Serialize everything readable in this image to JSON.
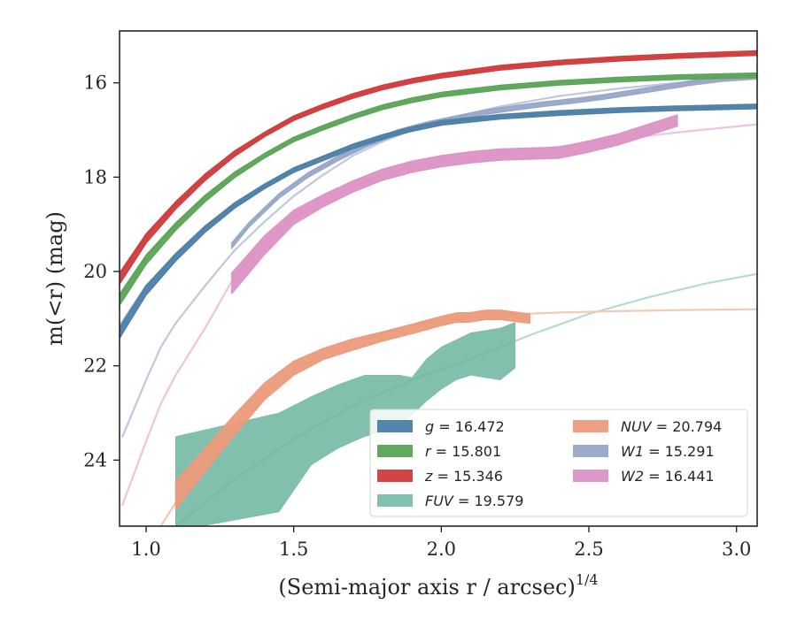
{
  "chart_data": {
    "type": "line",
    "xlabel": "(Semi-major axis r / arcsec)",
    "xlabel_exponent": "1/4",
    "ylabel": "m(<r) (mag)",
    "xlim": [
      0.91,
      3.07
    ],
    "ylim": [
      25.4,
      14.9
    ],
    "y_inverted": true,
    "grid": false,
    "legend_position": "lower-right",
    "x_ticks": [
      {
        "value": 1.0,
        "label": "1.0"
      },
      {
        "value": 1.5,
        "label": "1.5"
      },
      {
        "value": 2.0,
        "label": "2.0"
      },
      {
        "value": 2.5,
        "label": "2.5"
      },
      {
        "value": 3.0,
        "label": "3.0"
      }
    ],
    "y_ticks": [
      {
        "value": 16,
        "label": "16"
      },
      {
        "value": 18,
        "label": "18"
      },
      {
        "value": 20,
        "label": "20"
      },
      {
        "value": 22,
        "label": "22"
      },
      {
        "value": 24,
        "label": "24"
      }
    ],
    "series": [
      {
        "name": "g",
        "legend_value": "16.472",
        "color": "#4c7ea8",
        "kind": "band",
        "x": [
          0.91,
          1.0,
          1.1,
          1.2,
          1.3,
          1.4,
          1.5,
          1.6,
          1.7,
          1.8,
          1.9,
          2.0,
          2.2,
          2.4,
          2.6,
          2.8,
          3.07
        ],
        "y": [
          21.3,
          20.4,
          19.7,
          19.1,
          18.6,
          18.2,
          17.85,
          17.6,
          17.35,
          17.15,
          16.98,
          16.85,
          16.72,
          16.64,
          16.58,
          16.54,
          16.5
        ],
        "width": [
          0.12,
          0.1,
          0.08,
          0.07,
          0.06,
          0.05,
          0.05,
          0.05,
          0.05,
          0.05,
          0.05,
          0.05,
          0.05,
          0.05,
          0.05,
          0.05,
          0.05
        ],
        "model_x": [
          0.91,
          1.0,
          1.1,
          1.2,
          1.3,
          1.4,
          1.5,
          1.6,
          1.7,
          1.8,
          1.9,
          2.0,
          2.2,
          2.4,
          2.6,
          2.8,
          3.07
        ],
        "model_y": [
          21.15,
          20.3,
          19.65,
          19.05,
          18.6,
          18.2,
          17.85,
          17.58,
          17.34,
          17.14,
          16.98,
          16.85,
          16.72,
          16.64,
          16.58,
          16.54,
          16.5
        ],
        "model_color": "#a9c1d7"
      },
      {
        "name": "r",
        "legend_value": "15.801",
        "color": "#5aa456",
        "kind": "band",
        "x": [
          0.91,
          1.0,
          1.1,
          1.2,
          1.3,
          1.4,
          1.5,
          1.6,
          1.7,
          1.8,
          1.9,
          2.0,
          2.2,
          2.4,
          2.6,
          2.8,
          3.07
        ],
        "y": [
          20.6,
          19.75,
          19.05,
          18.45,
          17.95,
          17.55,
          17.2,
          16.95,
          16.72,
          16.52,
          16.37,
          16.25,
          16.1,
          16.0,
          15.93,
          15.88,
          15.84
        ],
        "width": [
          0.12,
          0.1,
          0.08,
          0.07,
          0.06,
          0.05,
          0.05,
          0.05,
          0.05,
          0.05,
          0.05,
          0.05,
          0.05,
          0.05,
          0.05,
          0.05,
          0.05
        ],
        "model_x": [
          0.91,
          1.0,
          1.1,
          1.2,
          1.3,
          1.4,
          1.5,
          1.6,
          1.7,
          1.8,
          1.9,
          2.0,
          2.2,
          2.4,
          2.6,
          2.8,
          3.07
        ],
        "model_y": [
          20.5,
          19.7,
          19.0,
          18.42,
          17.95,
          17.55,
          17.2,
          16.95,
          16.72,
          16.52,
          16.37,
          16.25,
          16.1,
          16.0,
          15.93,
          15.88,
          15.84
        ],
        "model_color": "#aad2a7"
      },
      {
        "name": "z",
        "legend_value": "15.346",
        "color": "#d03b3b",
        "kind": "band",
        "x": [
          0.91,
          1.0,
          1.1,
          1.2,
          1.3,
          1.4,
          1.5,
          1.6,
          1.7,
          1.8,
          1.9,
          2.0,
          2.2,
          2.4,
          2.6,
          2.8,
          3.07
        ],
        "y": [
          20.15,
          19.3,
          18.6,
          18.0,
          17.5,
          17.1,
          16.75,
          16.5,
          16.28,
          16.1,
          15.96,
          15.85,
          15.68,
          15.57,
          15.49,
          15.43,
          15.37
        ],
        "width": [
          0.12,
          0.1,
          0.08,
          0.07,
          0.06,
          0.05,
          0.05,
          0.05,
          0.05,
          0.05,
          0.05,
          0.05,
          0.05,
          0.05,
          0.05,
          0.05,
          0.05
        ],
        "model_x": [
          0.91,
          1.0,
          1.1,
          1.2,
          1.3,
          1.4,
          1.5,
          1.6,
          1.7,
          1.8,
          1.9,
          2.0,
          2.2,
          2.4,
          2.6,
          2.8,
          3.07
        ],
        "model_y": [
          20.05,
          19.25,
          18.57,
          18.0,
          17.5,
          17.1,
          16.75,
          16.5,
          16.28,
          16.1,
          15.96,
          15.85,
          15.68,
          15.57,
          15.49,
          15.43,
          15.37
        ],
        "model_color": "#e8a2a2"
      },
      {
        "name": "FUV",
        "legend_value": "19.579",
        "color": "#6bb59d",
        "kind": "range",
        "x": [
          1.1,
          1.45,
          1.56,
          1.65,
          1.74,
          1.8,
          1.86,
          1.9,
          1.95,
          2.0,
          2.05,
          2.1,
          2.15,
          2.2,
          2.24,
          2.25
        ],
        "y_low": [
          25.5,
          25.1,
          24.1,
          23.75,
          23.5,
          23.4,
          23.3,
          23.05,
          22.75,
          22.5,
          22.3,
          22.2,
          22.25,
          22.3,
          22.1,
          22.05
        ],
        "y_high": [
          23.5,
          23.0,
          22.65,
          22.4,
          22.2,
          22.2,
          22.2,
          22.25,
          21.85,
          21.6,
          21.45,
          21.3,
          21.25,
          21.2,
          21.1,
          21.08
        ],
        "model_x": [
          1.1,
          1.3,
          1.5,
          1.7,
          1.9,
          2.1,
          2.3,
          2.5,
          2.7,
          2.9,
          3.07
        ],
        "model_y": [
          25.4,
          24.4,
          23.55,
          22.85,
          22.3,
          21.85,
          21.35,
          20.9,
          20.55,
          20.25,
          20.05
        ],
        "model_color": "#b3dccd"
      },
      {
        "name": "NUV",
        "legend_value": "20.794",
        "color": "#ec9a7b",
        "kind": "band",
        "x": [
          1.1,
          1.2,
          1.3,
          1.4,
          1.5,
          1.6,
          1.7,
          1.8,
          1.9,
          2.0,
          2.05,
          2.1,
          2.15,
          2.2,
          2.3
        ],
        "y": [
          24.75,
          24.0,
          23.25,
          22.55,
          22.05,
          21.75,
          21.55,
          21.38,
          21.22,
          21.05,
          20.98,
          20.97,
          20.92,
          20.92,
          21.0
        ],
        "width": [
          0.3,
          0.25,
          0.22,
          0.18,
          0.15,
          0.12,
          0.12,
          0.1,
          0.1,
          0.1,
          0.1,
          0.1,
          0.1,
          0.1,
          0.1
        ],
        "model_x": [
          1.05,
          1.1,
          1.2,
          1.3,
          1.4,
          1.5,
          1.6,
          1.7,
          1.8,
          1.9,
          2.0,
          2.2,
          2.4,
          2.6,
          2.8,
          3.07
        ],
        "model_y": [
          25.4,
          24.9,
          24.1,
          23.3,
          22.6,
          22.1,
          21.75,
          21.5,
          21.3,
          21.15,
          21.03,
          20.92,
          20.87,
          20.84,
          20.82,
          20.8
        ],
        "model_color": "#f5c8b6"
      },
      {
        "name": "W1",
        "legend_value": "15.291",
        "color": "#97a6c8",
        "kind": "band",
        "x": [
          1.29,
          1.35,
          1.45,
          1.55,
          1.65,
          1.75,
          1.85,
          1.95,
          2.05,
          2.15,
          2.25,
          2.35,
          2.45,
          2.55,
          2.65,
          2.75,
          2.85,
          2.95,
          3.07
        ],
        "y": [
          19.45,
          19.0,
          18.4,
          17.95,
          17.6,
          17.3,
          17.05,
          16.88,
          16.75,
          16.62,
          16.53,
          16.45,
          16.38,
          16.3,
          16.2,
          16.1,
          16.0,
          15.92,
          15.87
        ],
        "width": [
          0.06,
          0.05,
          0.05,
          0.05,
          0.05,
          0.05,
          0.05,
          0.05,
          0.05,
          0.05,
          0.05,
          0.05,
          0.05,
          0.05,
          0.05,
          0.05,
          0.05,
          0.05,
          0.05
        ],
        "model_x": [
          0.92,
          1.0,
          1.05,
          1.1,
          1.2,
          1.3,
          1.4,
          1.5,
          1.6,
          1.7,
          1.8,
          1.9,
          2.0,
          2.2,
          2.4,
          2.6,
          2.8,
          3.07
        ],
        "model_y": [
          23.5,
          22.3,
          21.6,
          21.1,
          20.3,
          19.55,
          18.95,
          18.4,
          17.95,
          17.55,
          17.25,
          17.0,
          16.8,
          16.5,
          16.28,
          16.12,
          16.0,
          15.88
        ],
        "model_color": "#c1c8dd"
      },
      {
        "name": "W2",
        "legend_value": "16.441",
        "color": "#dc92c4",
        "kind": "band",
        "x": [
          1.29,
          1.4,
          1.5,
          1.6,
          1.7,
          1.8,
          1.9,
          2.0,
          2.1,
          2.2,
          2.3,
          2.4,
          2.5,
          2.6,
          2.7,
          2.8
        ],
        "y": [
          20.25,
          19.45,
          18.85,
          18.5,
          18.2,
          17.95,
          17.78,
          17.66,
          17.58,
          17.52,
          17.5,
          17.48,
          17.35,
          17.2,
          17.0,
          16.8
        ],
        "width": [
          0.22,
          0.2,
          0.15,
          0.13,
          0.12,
          0.12,
          0.12,
          0.12,
          0.12,
          0.12,
          0.12,
          0.12,
          0.12,
          0.12,
          0.12,
          0.12
        ],
        "model_x": [
          0.92,
          1.0,
          1.05,
          1.1,
          1.2,
          1.3,
          1.4,
          1.5,
          1.6,
          1.7,
          1.8,
          1.9,
          2.0,
          2.2,
          2.4,
          2.6,
          2.8,
          3.07
        ],
        "model_y": [
          24.95,
          23.6,
          22.8,
          22.2,
          21.2,
          20.1,
          19.4,
          18.85,
          18.5,
          18.2,
          17.95,
          17.78,
          17.66,
          17.5,
          17.35,
          17.2,
          17.05,
          16.88
        ],
        "model_color": "#eec3dd"
      }
    ]
  }
}
